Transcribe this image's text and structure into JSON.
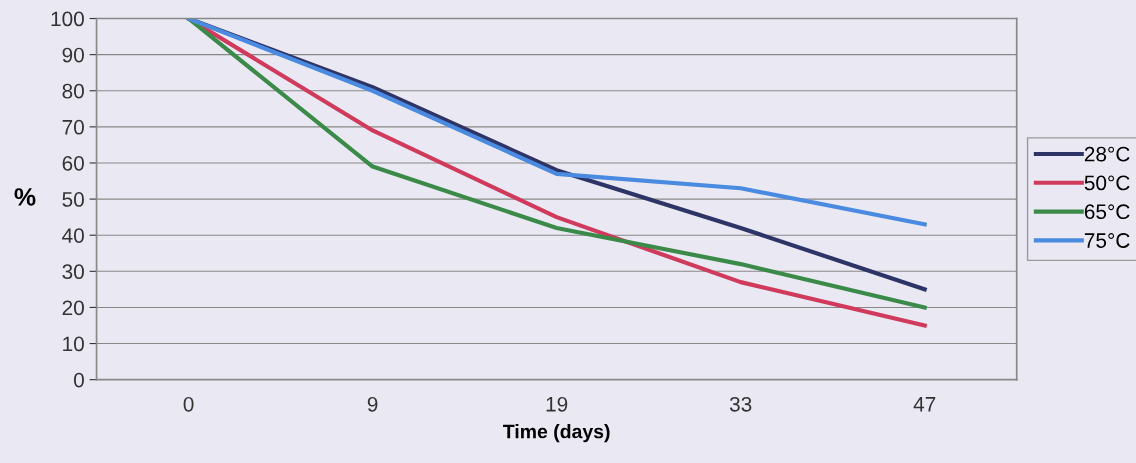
{
  "chart_data": {
    "type": "line",
    "xlabel": "Time (days)",
    "ylabel": "%",
    "categories": [
      "0",
      "9",
      "19",
      "33",
      "47"
    ],
    "series": [
      {
        "name": "28°C",
        "color": "#2e3466",
        "values": [
          100,
          81,
          58,
          42,
          25
        ]
      },
      {
        "name": "50°C",
        "color": "#d03a5c",
        "values": [
          100,
          69,
          45,
          27,
          15
        ]
      },
      {
        "name": "65°C",
        "color": "#3b8a4a",
        "values": [
          100,
          59,
          42,
          32,
          20
        ]
      },
      {
        "name": "75°C",
        "color": "#4a8ae0",
        "values": [
          100,
          80,
          57,
          53,
          43
        ]
      }
    ],
    "ylim": [
      0,
      100
    ],
    "yticks": [
      0,
      10,
      20,
      30,
      40,
      50,
      60,
      70,
      80,
      90,
      100
    ],
    "grid": "y",
    "legend": "right",
    "marker": "none",
    "line_style": "solid"
  }
}
